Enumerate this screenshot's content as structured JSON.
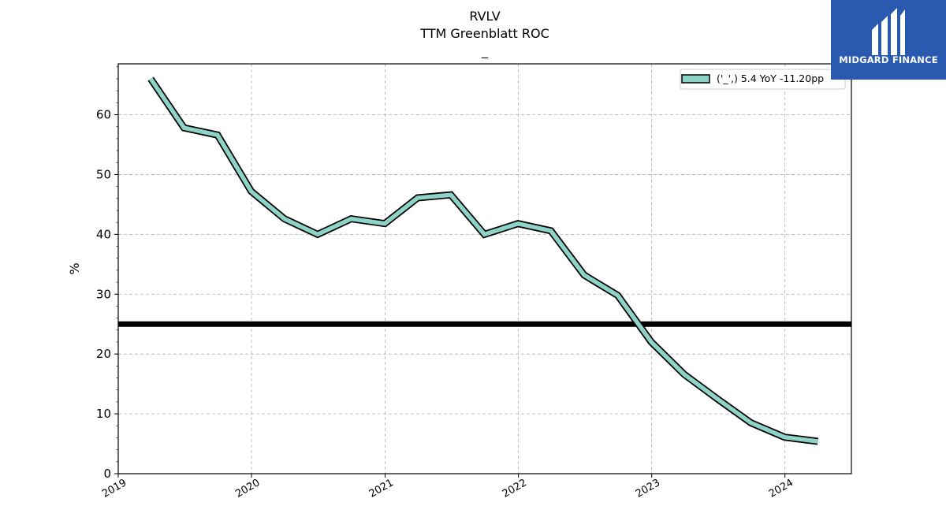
{
  "header": {
    "ticker": "RVLV",
    "metric": "TTM Greenblatt ROC",
    "subtitle": "_"
  },
  "brand": {
    "name": "MIDGARD FINANCE",
    "icon": "midgard-logo-icon",
    "background": "#2a5ab0"
  },
  "chart_data": {
    "type": "line",
    "ticker": "RVLV",
    "title": "TTM Greenblatt ROC",
    "subtitle": "_",
    "xlabel": "",
    "ylabel": "%",
    "xlim": [
      "2019-01-01",
      "2024-07-01"
    ],
    "ylim": [
      0,
      68.5
    ],
    "x_ticks": [
      "2019",
      "2020",
      "2021",
      "2022",
      "2023",
      "2024"
    ],
    "y_ticks": [
      0,
      10,
      20,
      30,
      40,
      50,
      60
    ],
    "grid": true,
    "legend_position": "top-right",
    "reference_line": {
      "y": 25,
      "color": "#000000"
    },
    "series": [
      {
        "name": "('_',) 5.4 YoY -11.20pp",
        "color": "#8dd3c7",
        "x": [
          "2019-03-31",
          "2019-06-30",
          "2019-09-30",
          "2019-12-31",
          "2020-03-31",
          "2020-06-30",
          "2020-09-30",
          "2020-12-31",
          "2021-03-31",
          "2021-06-30",
          "2021-09-30",
          "2021-12-31",
          "2022-03-31",
          "2022-06-30",
          "2022-09-30",
          "2022-12-31",
          "2023-03-31",
          "2023-06-30",
          "2023-09-30",
          "2023-12-31",
          "2024-03-31"
        ],
        "y": [
          66.0,
          57.8,
          56.6,
          47.2,
          42.6,
          40.0,
          42.6,
          41.8,
          46.1,
          46.6,
          40.0,
          41.8,
          40.6,
          33.2,
          29.8,
          22.0,
          16.6,
          12.5,
          8.5,
          6.1,
          5.4
        ]
      }
    ]
  }
}
